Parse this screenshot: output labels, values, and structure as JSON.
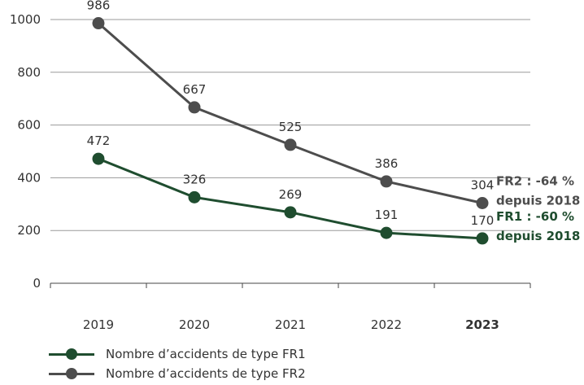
{
  "chart_data": {
    "type": "line",
    "categories": [
      "2019",
      "2020",
      "2021",
      "2022",
      "2023"
    ],
    "highlight_category": "2023",
    "ylim": [
      0,
      1000
    ],
    "yticks": [
      0,
      200,
      400,
      600,
      800,
      1000
    ],
    "grid": "horizontal",
    "series": [
      {
        "name": "Nombre d’accidents de type FR1",
        "color": "#1f4d2f",
        "values": [
          472,
          326,
          269,
          191,
          170
        ]
      },
      {
        "name": "Nombre d’accidents de type FR2",
        "color": "#4d4d4d",
        "values": [
          986,
          667,
          525,
          386,
          304
        ]
      }
    ],
    "annotations": [
      {
        "series": 1,
        "line1": "FR2 : -64 %",
        "line2": "depuis 2018"
      },
      {
        "series": 0,
        "line1": "FR1 : -60 %",
        "line2": "depuis 2018"
      }
    ]
  }
}
